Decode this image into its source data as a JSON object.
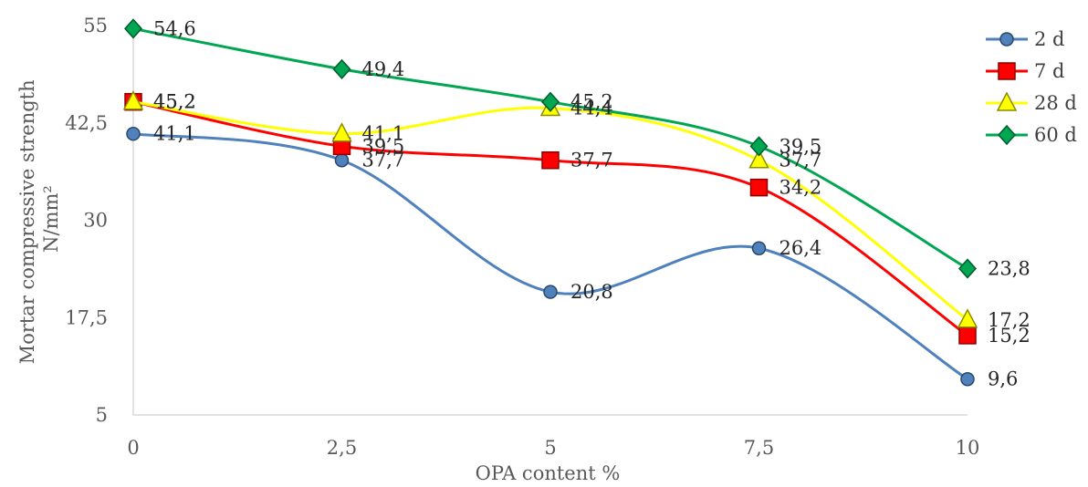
{
  "chart_data": {
    "type": "line",
    "title": "",
    "xlabel": "OPA content %",
    "ylabel": "Mortar compressive strength N/mm²",
    "ylabel_lines": [
      "Mortar compressive strength",
      "N/mm²"
    ],
    "categories": [
      "0",
      "2,5",
      "5",
      "7,5",
      "10"
    ],
    "x": [
      0,
      2.5,
      5,
      7.5,
      10
    ],
    "xlim": [
      0,
      10
    ],
    "ylim": [
      5,
      55
    ],
    "yticks": [
      5,
      17.5,
      30,
      42.5,
      55
    ],
    "ytick_labels": [
      "5",
      "17,5",
      "30",
      "42,5",
      "55"
    ],
    "grid": false,
    "smooth": true,
    "legend_position": "right",
    "series": [
      {
        "name": "2 d",
        "color": "#4f81bd",
        "marker": "circle",
        "values": [
          41.1,
          37.7,
          20.8,
          26.4,
          9.6
        ],
        "labels": [
          "41,1",
          "37,7",
          "20,8",
          "26,4",
          "9,6"
        ]
      },
      {
        "name": "7 d",
        "color": "#ff0000",
        "marker": "square",
        "values": [
          45.2,
          39.5,
          37.7,
          34.2,
          15.2
        ],
        "labels": [
          "45,2",
          "39,5",
          "37,7",
          "34,2",
          "15,2"
        ]
      },
      {
        "name": "28 d",
        "color": "#ffff00",
        "marker": "triangle",
        "values": [
          45.2,
          41.1,
          44.4,
          37.7,
          17.2
        ],
        "labels": [
          "45,2",
          "41,1",
          "44,4",
          "37,7",
          "17,2"
        ]
      },
      {
        "name": "60 d",
        "color": "#00a651",
        "marker": "diamond",
        "values": [
          54.6,
          49.4,
          45.2,
          39.5,
          23.8
        ],
        "labels": [
          "54,6",
          "49,4",
          "45,2",
          "39,5",
          "23,8"
        ]
      }
    ]
  }
}
